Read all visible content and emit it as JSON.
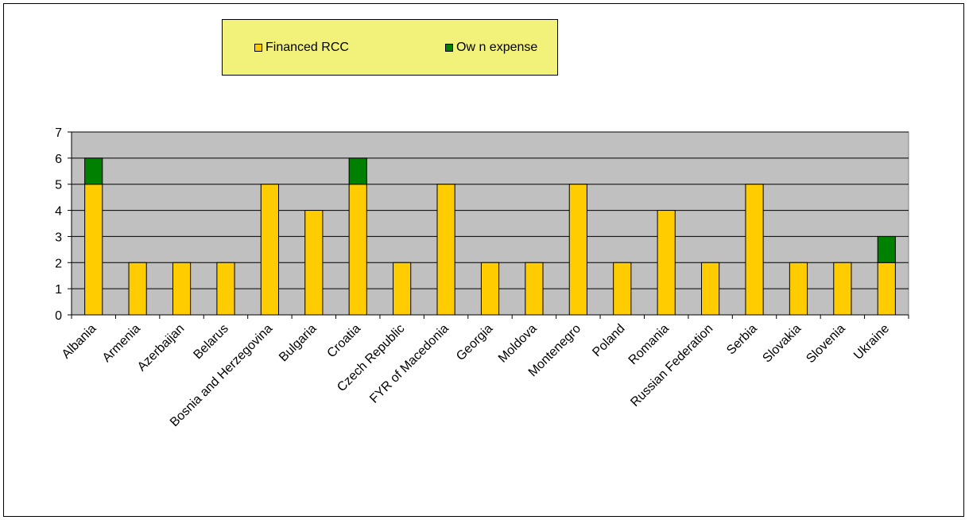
{
  "chart_data": {
    "type": "bar",
    "stacked": true,
    "categories": [
      "Albania",
      "Armenia",
      "Azerbaijan",
      "Belarus",
      "Bosnia and Herzegovina",
      "Bulgaria",
      "Croatia",
      "Czech Republic",
      "FYR of Macedonia",
      "Georgia",
      "Moldova",
      "Montenegro",
      "Poland",
      "Romania",
      "Russian Federation",
      "Serbia",
      "Slovakia",
      "Slovenia",
      "Ukraine"
    ],
    "series": [
      {
        "name": "Financed RCC",
        "color": "#FFCC00",
        "values": [
          5,
          2,
          2,
          2,
          5,
          4,
          5,
          2,
          5,
          2,
          2,
          5,
          2,
          4,
          2,
          5,
          2,
          2,
          2
        ]
      },
      {
        "name": "Ow n expense",
        "color": "#008000",
        "values": [
          1,
          0,
          0,
          0,
          0,
          0,
          1,
          0,
          0,
          0,
          0,
          0,
          0,
          0,
          0,
          0,
          0,
          0,
          1
        ]
      }
    ],
    "yticks": [
      0,
      1,
      2,
      3,
      4,
      5,
      6,
      7
    ],
    "ylim": [
      0,
      7
    ],
    "grid": true,
    "plot_background": "#C0C0C0",
    "legend_background": "#F2F27A",
    "legend_position": "top"
  }
}
